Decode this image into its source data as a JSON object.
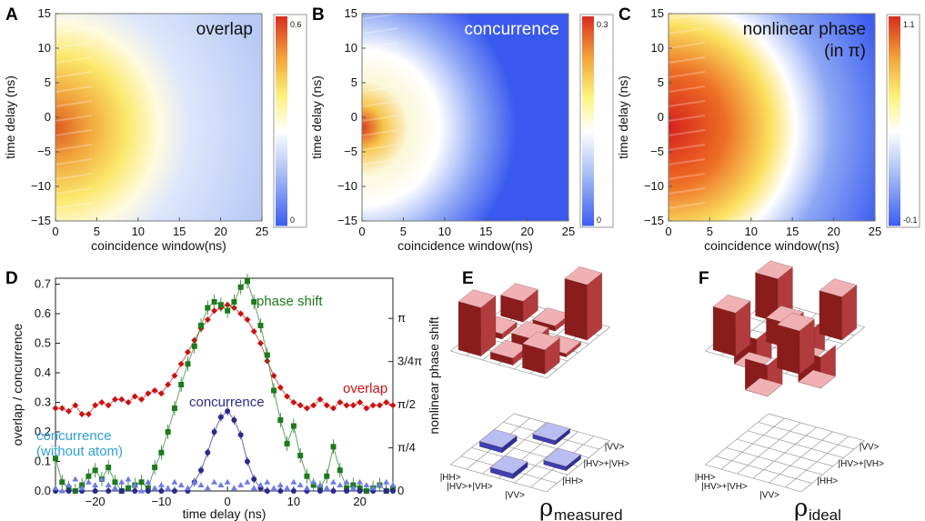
{
  "colors": {
    "overlap": "#cc1111",
    "concurrence": "#2a2a8c",
    "phase": "#1d7a1d",
    "concurrence_no_atom": "#6f7be8",
    "bar_red": "#c8474a",
    "bar_blue": "#3b3fb0"
  },
  "chart_data": [
    {
      "id": "A",
      "type": "heatmap",
      "title": "overlap",
      "xlabel": "coincidence window(ns)",
      "ylabel": "time delay (ns)",
      "xlim": [
        0,
        25
      ],
      "ylim": [
        -15,
        15
      ],
      "xticks": [
        0,
        5,
        10,
        15,
        20,
        25
      ],
      "yticks": [
        -15,
        -10,
        -5,
        0,
        5,
        10,
        15
      ],
      "colorbar": {
        "max_label": "0.6",
        "min_label": "0",
        "min": 0,
        "max": 0.6
      }
    },
    {
      "id": "B",
      "type": "heatmap",
      "title": "concurrence",
      "xlabel": "coincidence window(ns)",
      "ylabel": "time delay (ns)",
      "xlim": [
        0,
        25
      ],
      "ylim": [
        -15,
        15
      ],
      "xticks": [
        0,
        5,
        10,
        15,
        20,
        25
      ],
      "yticks": [
        -15,
        -10,
        -5,
        0,
        5,
        10,
        15
      ],
      "colorbar": {
        "max_label": "0.3",
        "min_label": "0",
        "min": 0,
        "max": 0.3
      }
    },
    {
      "id": "C",
      "type": "heatmap",
      "title_line1": "nonlinear phase",
      "title_line2": "(in π)",
      "xlabel": "coincidence window(ns)",
      "ylabel": "time delay (ns)",
      "xlim": [
        0,
        25
      ],
      "ylim": [
        -15,
        15
      ],
      "xticks": [
        0,
        5,
        10,
        15,
        20,
        25
      ],
      "yticks": [
        -15,
        -10,
        -5,
        0,
        5,
        10,
        15
      ],
      "colorbar": {
        "max_label": "1.1",
        "min_label": "-0.1",
        "min": -0.1,
        "max": 1.1
      }
    },
    {
      "id": "D",
      "type": "line",
      "xlabel": "time delay (ns)",
      "ylabel": "overlap / concurrence",
      "ylabel_right": "nonlinear phase shift",
      "xlim": [
        -26,
        25
      ],
      "ylim": [
        0,
        0.72
      ],
      "xticks": [
        -20,
        -10,
        0,
        10,
        20
      ],
      "xtick_labels": [
        "−20",
        "−10",
        "0",
        "10",
        "20"
      ],
      "yticks": [
        0,
        0.1,
        0.2,
        0.3,
        0.4,
        0.5,
        0.6,
        0.7
      ],
      "ytick_labels": [
        "0.0",
        "0.1",
        "0.2",
        "0.3",
        "0.4",
        "0.5",
        "0.6",
        "0.7"
      ],
      "right_ticks": [
        0,
        0.146,
        0.292,
        0.438,
        0.584
      ],
      "right_tick_labels": [
        "0",
        "π/4",
        "π/2",
        "3/4π",
        "π"
      ],
      "series": [
        {
          "name": "overlap",
          "label": "overlap",
          "marker": "diamond",
          "x": [
            -26,
            -25,
            -24,
            -23,
            -22,
            -21,
            -20,
            -19,
            -18,
            -17,
            -16,
            -15,
            -14,
            -13,
            -12,
            -11,
            -10,
            -9,
            -8,
            -7,
            -6,
            -5,
            -4,
            -3,
            -2,
            -1,
            0,
            1,
            2,
            3,
            4,
            5,
            6,
            7,
            8,
            9,
            10,
            11,
            12,
            13,
            14,
            15,
            16,
            17,
            18,
            19,
            20,
            21,
            22,
            23,
            24,
            25
          ],
          "y": [
            0.28,
            0.28,
            0.27,
            0.29,
            0.26,
            0.26,
            0.29,
            0.3,
            0.29,
            0.31,
            0.31,
            0.3,
            0.32,
            0.31,
            0.33,
            0.34,
            0.33,
            0.36,
            0.39,
            0.43,
            0.47,
            0.51,
            0.55,
            0.58,
            0.61,
            0.62,
            0.63,
            0.62,
            0.6,
            0.58,
            0.54,
            0.5,
            0.44,
            0.39,
            0.35,
            0.32,
            0.3,
            0.29,
            0.28,
            0.29,
            0.31,
            0.29,
            0.28,
            0.3,
            0.29,
            0.29,
            0.3,
            0.28,
            0.29,
            0.29,
            0.3,
            0.29
          ]
        },
        {
          "name": "phase shift",
          "label": "phase shift",
          "marker": "square",
          "x": [
            -26,
            -25,
            -24,
            -23,
            -22,
            -21,
            -20,
            -19,
            -18,
            -17,
            -16,
            -15,
            -14,
            -13,
            -12,
            -11,
            -10,
            -9,
            -8,
            -7,
            -6,
            -5,
            -4,
            -3,
            -2,
            -1,
            0,
            1,
            2,
            3,
            4,
            5,
            6,
            7,
            8,
            9,
            10,
            11,
            12,
            13,
            14,
            15,
            16,
            17,
            18,
            19,
            20,
            21,
            22,
            23,
            24,
            25
          ],
          "y": [
            0.11,
            0.03,
            0.01,
            0.0,
            0.02,
            0.05,
            0.07,
            0.04,
            0.08,
            0.03,
            0.0,
            0.01,
            0.02,
            0.03,
            0.01,
            0.08,
            0.13,
            0.2,
            0.28,
            0.36,
            0.43,
            0.49,
            0.56,
            0.62,
            0.64,
            0.63,
            0.61,
            0.64,
            0.69,
            0.71,
            0.64,
            0.56,
            0.46,
            0.34,
            0.24,
            0.16,
            0.22,
            0.12,
            0.05,
            0.02,
            0.01,
            0.05,
            0.15,
            0.07,
            0.01,
            0.02,
            0.01,
            0.0,
            0.01,
            0.02,
            0.0,
            0.01
          ]
        },
        {
          "name": "concurrence",
          "label": "concurrence",
          "marker": "circle",
          "x": [
            -26,
            -24,
            -22,
            -20,
            -18,
            -16,
            -14,
            -12,
            -10,
            -8,
            -6,
            -5,
            -4,
            -3,
            -2,
            -1,
            0,
            1,
            2,
            3,
            4,
            5,
            6,
            8,
            10,
            12,
            14,
            16,
            18,
            20,
            22,
            24,
            25
          ],
          "y": [
            0.0,
            0.0,
            0.0,
            0.0,
            0.0,
            0.0,
            0.0,
            0.0,
            0.0,
            0.0,
            0.0,
            0.03,
            0.07,
            0.13,
            0.2,
            0.25,
            0.27,
            0.24,
            0.19,
            0.1,
            0.04,
            0.01,
            0.0,
            0.0,
            0.0,
            0.0,
            0.0,
            0.0,
            0.0,
            0.0,
            0.0,
            0.0,
            0.0
          ]
        },
        {
          "name": "concurrence (without atom)",
          "label_line1": "concurrence",
          "label_line2": "(without atom)",
          "marker": "triangle",
          "x": [
            -26,
            -25,
            -24,
            -23,
            -22,
            -21,
            -20,
            -19,
            -18,
            -17,
            -16,
            -15,
            -14,
            -13,
            -12,
            -11,
            -10,
            -9,
            -8,
            -7,
            -6,
            -5,
            -4,
            -3,
            -2,
            -1,
            0,
            1,
            2,
            3,
            4,
            5,
            6,
            7,
            8,
            9,
            10,
            11,
            12,
            13,
            14,
            15,
            16,
            17,
            18,
            19,
            20,
            21,
            22,
            23,
            24,
            25
          ],
          "y": [
            0.01,
            0.0,
            0.02,
            0.04,
            0.01,
            0.03,
            0.02,
            0.04,
            0.02,
            0.01,
            0.03,
            0.04,
            0.02,
            0.0,
            0.03,
            0.01,
            0.02,
            0.01,
            0.03,
            0.02,
            0.01,
            0.03,
            0.02,
            0.01,
            0.03,
            0.02,
            0.03,
            0.01,
            0.02,
            0.03,
            0.01,
            0.02,
            0.03,
            0.01,
            0.02,
            0.01,
            0.03,
            0.02,
            0.01,
            0.03,
            0.02,
            0.01,
            0.03,
            0.02,
            0.03,
            0.01,
            0.03,
            0.02,
            0.01,
            0.02,
            0.03,
            0.02
          ]
        }
      ]
    },
    {
      "id": "E",
      "type": "bar3d",
      "label_main": "ρ",
      "label_sub": "measured",
      "basis": [
        "|HH>",
        "|HV>+|VH>",
        "|VV>"
      ],
      "real": [
        [
          0.12,
          0.03,
          0.32
        ],
        [
          0.03,
          0.05,
          0.02
        ],
        [
          0.28,
          0.04,
          0.14
        ]
      ],
      "imag": [
        [
          0.0,
          0.05,
          0.0
        ],
        [
          0.06,
          0.0,
          0.05
        ],
        [
          0.0,
          0.06,
          0.0
        ]
      ]
    },
    {
      "id": "F",
      "type": "bar3d",
      "label_main": "ρ",
      "label_sub": "ideal",
      "basis": [
        "|HH>",
        "|HV>+|VH>",
        "|VV>"
      ],
      "real": [
        [
          0.25,
          -0.18,
          0.25
        ],
        [
          -0.18,
          0.14,
          -0.18
        ],
        [
          0.25,
          -0.18,
          0.25
        ]
      ],
      "imag": [
        [
          0,
          0,
          0
        ],
        [
          0,
          0,
          0
        ],
        [
          0,
          0,
          0
        ]
      ]
    }
  ],
  "labels": {
    "panel_A": "A",
    "panel_B": "B",
    "panel_C": "C",
    "panel_D": "D",
    "panel_E": "E",
    "panel_F": "F"
  }
}
